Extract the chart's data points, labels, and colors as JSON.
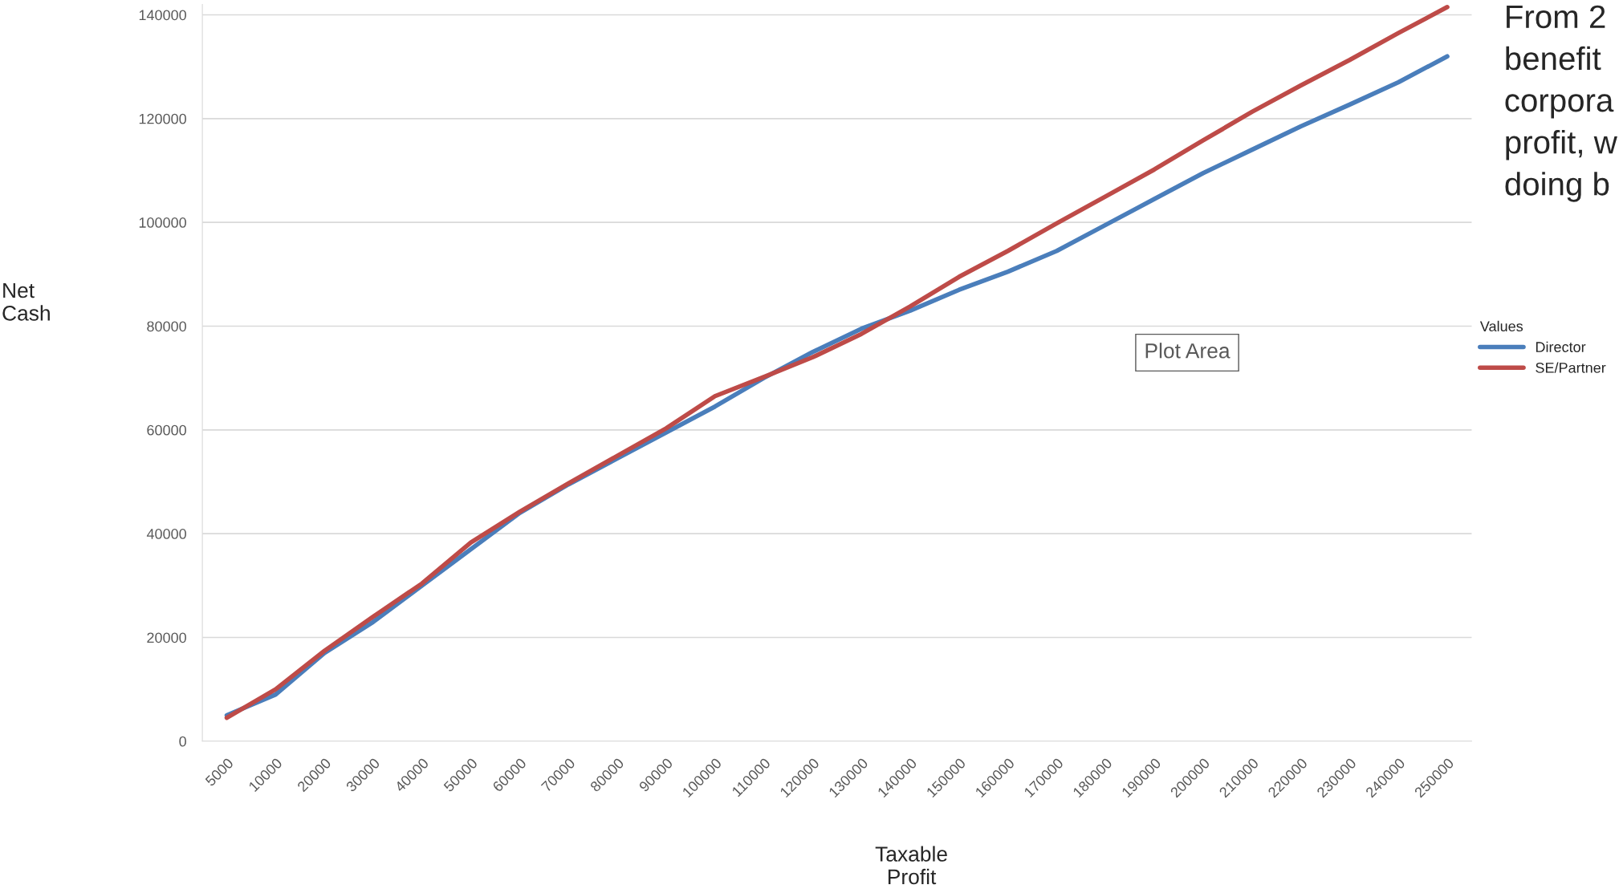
{
  "chart_data": {
    "type": "line",
    "xlabel": "Taxable\nProfit",
    "ylabel": "Net\nCash",
    "legend_title": "Values",
    "categories": [
      "5000",
      "10000",
      "20000",
      "30000",
      "40000",
      "50000",
      "60000",
      "70000",
      "80000",
      "90000",
      "100000",
      "110000",
      "120000",
      "130000",
      "140000",
      "150000",
      "160000",
      "170000",
      "180000",
      "190000",
      "200000",
      "210000",
      "220000",
      "230000",
      "240000",
      "250000"
    ],
    "series": [
      {
        "name": "Director",
        "color": "#4a7ebb",
        "values": [
          5000,
          9000,
          17000,
          23000,
          30000,
          37000,
          44000,
          49500,
          54500,
          59500,
          64500,
          70000,
          75000,
          79500,
          83000,
          87000,
          90500,
          94500,
          99500,
          104500,
          109500,
          114000,
          118500,
          122700,
          127000,
          132000
        ]
      },
      {
        "name": "SE/Partner",
        "color": "#be4b48",
        "values": [
          4500,
          10000,
          17400,
          24000,
          30400,
          38300,
          44200,
          49700,
          55000,
          60300,
          66500,
          70200,
          74000,
          78500,
          83800,
          89500,
          94500,
          99800,
          105000,
          110200,
          115800,
          121300,
          126400,
          131300,
          136500,
          141500
        ]
      }
    ],
    "ylim": [
      0,
      142000
    ],
    "yticks": [
      0,
      20000,
      40000,
      60000,
      80000,
      100000,
      120000,
      140000
    ],
    "grid": "y",
    "legend": "right",
    "marker": "none",
    "line_style": "solid",
    "annotations": [
      "Plot Area",
      "From 2\nbenefit\ncorpora\nprofit, w\ndoing b"
    ]
  }
}
